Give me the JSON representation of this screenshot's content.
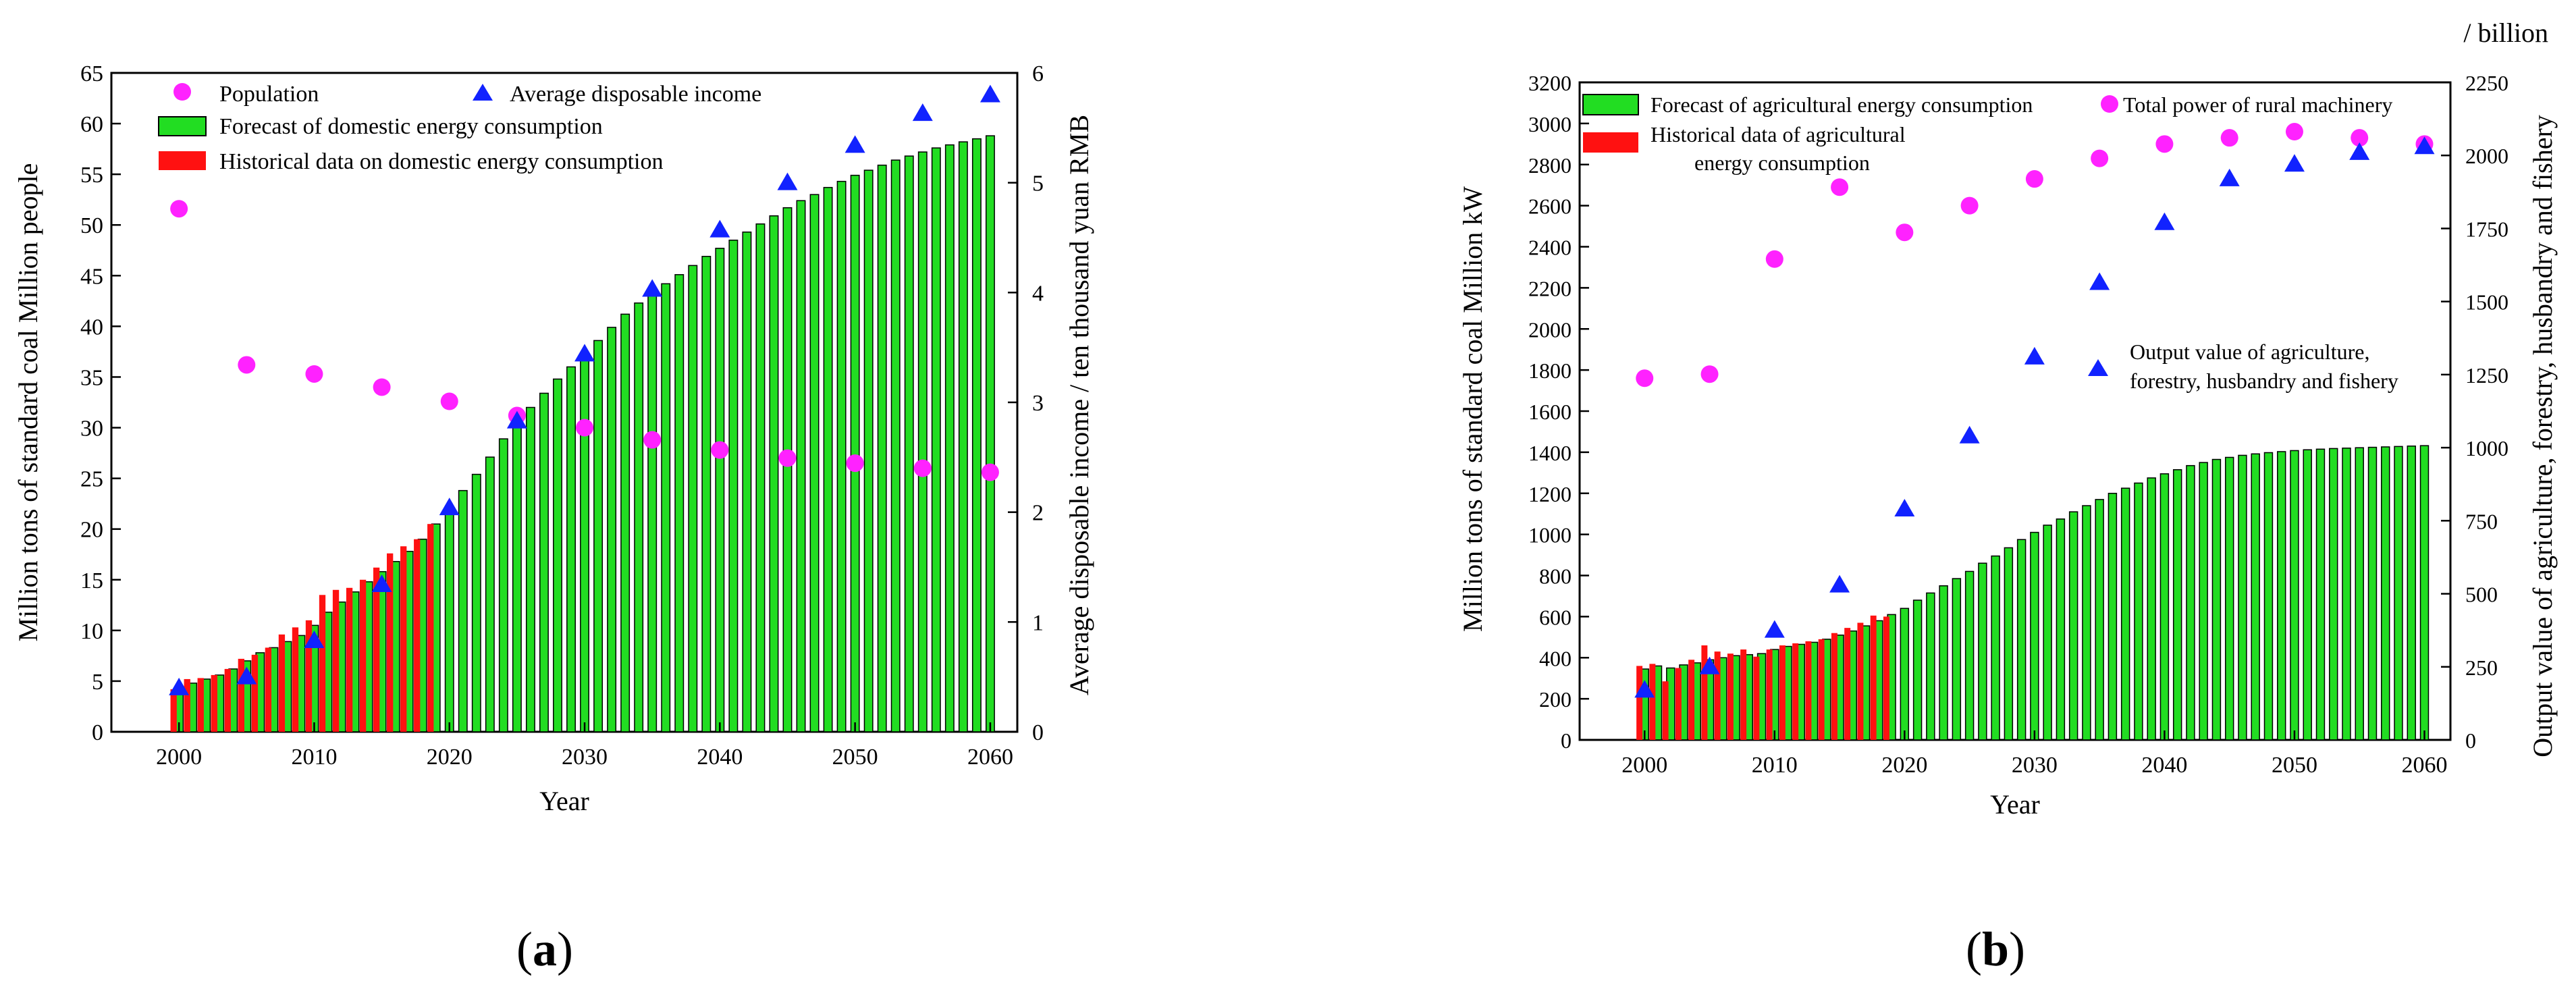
{
  "panel_labels": {
    "a": {
      "open": "(",
      "letter": "a",
      "close": ")"
    },
    "b": {
      "open": "(",
      "letter": "b",
      "close": ")"
    }
  },
  "colors": {
    "bar_green": "#22dd22",
    "bar_red": "#ff1111",
    "population_marker": "#ff22ff",
    "income_marker": "#1122ff"
  },
  "chart_data": [
    {
      "id": "a",
      "type": "bar",
      "xlabel": "Year",
      "ylabel": "Million tons of standard coal  Million people",
      "y2label": "Average disposable income / ten thousand yuan RMB",
      "xlim": [
        1995,
        2062
      ],
      "ylim": [
        0,
        65
      ],
      "y2lim": [
        0,
        6
      ],
      "xticks": [
        2000,
        2010,
        2020,
        2030,
        2040,
        2050,
        2060
      ],
      "yticks": [
        0,
        5,
        10,
        15,
        20,
        25,
        30,
        35,
        40,
        45,
        50,
        55,
        60,
        65
      ],
      "y2ticks": [
        0,
        1,
        2,
        3,
        4,
        5,
        6
      ],
      "legend": {
        "population": "Population",
        "income": "Average disposable income",
        "forecast": "Forecast of domestic energy consumption",
        "historical": "Historical data on domestic energy consumption"
      },
      "forecast": {
        "name": "Forecast of domestic energy consumption",
        "x": [
          2000,
          2001,
          2002,
          2003,
          2004,
          2005,
          2006,
          2007,
          2008,
          2009,
          2010,
          2011,
          2012,
          2013,
          2014,
          2015,
          2016,
          2017,
          2018,
          2019,
          2020,
          2021,
          2022,
          2023,
          2024,
          2025,
          2026,
          2027,
          2028,
          2029,
          2030,
          2031,
          2032,
          2033,
          2034,
          2035,
          2036,
          2037,
          2038,
          2039,
          2040,
          2041,
          2042,
          2043,
          2044,
          2045,
          2046,
          2047,
          2048,
          2049,
          2050,
          2051,
          2052,
          2053,
          2054,
          2055,
          2056,
          2057,
          2058,
          2059,
          2060
        ],
        "values": [
          4.0,
          4.8,
          5.2,
          5.6,
          6.2,
          7.0,
          7.8,
          8.3,
          8.9,
          9.5,
          10.5,
          11.8,
          12.8,
          13.8,
          14.8,
          15.8,
          16.8,
          17.8,
          19.0,
          20.5,
          21.9,
          23.8,
          25.4,
          27.1,
          28.9,
          30.5,
          32.0,
          33.4,
          34.8,
          36.0,
          37.3,
          38.6,
          39.9,
          41.2,
          42.3,
          43.3,
          44.2,
          45.1,
          46.0,
          46.9,
          47.7,
          48.5,
          49.3,
          50.1,
          50.9,
          51.7,
          52.4,
          53.0,
          53.7,
          54.3,
          54.9,
          55.4,
          55.9,
          56.4,
          56.8,
          57.2,
          57.6,
          57.9,
          58.2,
          58.5,
          58.8
        ]
      },
      "historical": {
        "name": "Historical data on domestic energy consumption",
        "x": [
          2000,
          2001,
          2002,
          2003,
          2004,
          2005,
          2006,
          2007,
          2008,
          2009,
          2010,
          2011,
          2012,
          2013,
          2014,
          2015,
          2016,
          2017,
          2018,
          2019
        ],
        "values": [
          4.2,
          5.2,
          5.3,
          5.6,
          6.2,
          7.2,
          7.6,
          8.3,
          9.6,
          10.3,
          11.0,
          13.5,
          14.0,
          14.2,
          15.0,
          16.2,
          17.6,
          18.3,
          19.0,
          20.5
        ]
      },
      "population": {
        "name": "Population",
        "x": [
          2000,
          2005,
          2010,
          2015,
          2020,
          2025,
          2030,
          2035,
          2040,
          2045,
          2050,
          2055,
          2060
        ],
        "values": [
          51.6,
          36.2,
          35.3,
          34.0,
          32.6,
          31.2,
          30.0,
          28.8,
          27.8,
          27.0,
          26.5,
          26.0,
          25.6
        ]
      },
      "income": {
        "name": "Average disposable income",
        "axis": "right",
        "x": [
          2000,
          2005,
          2010,
          2015,
          2020,
          2025,
          2030,
          2035,
          2040,
          2045,
          2050,
          2055,
          2060
        ],
        "values": [
          0.4,
          0.5,
          0.83,
          1.34,
          2.04,
          2.83,
          3.44,
          4.03,
          4.57,
          5.0,
          5.34,
          5.63,
          5.8
        ]
      }
    },
    {
      "id": "b",
      "type": "bar",
      "xlabel": "Year",
      "ylabel": "Million tons of standard coal  Million kW",
      "y2label": "Output value of agriculture, forestry, husbandry and fishery",
      "y2unit": "/ billion",
      "xlim": [
        1995,
        2062
      ],
      "ylim": [
        0,
        3200
      ],
      "y2lim": [
        0,
        2250
      ],
      "xticks": [
        2000,
        2010,
        2020,
        2030,
        2040,
        2050,
        2060
      ],
      "yticks": [
        0,
        200,
        400,
        600,
        800,
        1000,
        1200,
        1400,
        1600,
        1800,
        2000,
        2200,
        2400,
        2600,
        2800,
        3000,
        3200
      ],
      "y2ticks": [
        0,
        250,
        500,
        750,
        1000,
        1250,
        1500,
        1750,
        2000,
        2250
      ],
      "legend": {
        "forecast": "Forecast of agricultural energy consumption",
        "historical_line1": "Historical data of agricultural",
        "historical_line2": "energy consumption",
        "machinery": "Total power of rural machinery",
        "output_line1": "Output value of agriculture,",
        "output_line2": "forestry, husbandry and fishery"
      },
      "forecast": {
        "name": "Forecast of agricultural energy consumption",
        "x": [
          2000,
          2001,
          2002,
          2003,
          2004,
          2005,
          2006,
          2007,
          2008,
          2009,
          2010,
          2011,
          2012,
          2013,
          2014,
          2015,
          2016,
          2017,
          2018,
          2019,
          2020,
          2021,
          2022,
          2023,
          2024,
          2025,
          2026,
          2027,
          2028,
          2029,
          2030,
          2031,
          2032,
          2033,
          2034,
          2035,
          2036,
          2037,
          2038,
          2039,
          2040,
          2041,
          2042,
          2043,
          2044,
          2045,
          2046,
          2047,
          2048,
          2049,
          2050,
          2051,
          2052,
          2053,
          2054,
          2055,
          2056,
          2057,
          2058,
          2059,
          2060
        ],
        "values": [
          345,
          360,
          350,
          365,
          375,
          390,
          400,
          410,
          415,
          420,
          440,
          455,
          465,
          475,
          490,
          510,
          530,
          555,
          580,
          610,
          640,
          680,
          715,
          750,
          785,
          820,
          860,
          895,
          935,
          975,
          1010,
          1045,
          1075,
          1110,
          1140,
          1170,
          1200,
          1225,
          1250,
          1275,
          1295,
          1315,
          1335,
          1350,
          1365,
          1375,
          1385,
          1392,
          1398,
          1403,
          1408,
          1412,
          1415,
          1418,
          1420,
          1422,
          1424,
          1426,
          1428,
          1430,
          1432
        ]
      },
      "historical": {
        "name": "Historical data of agricultural energy consumption",
        "x": [
          2000,
          2001,
          2002,
          2003,
          2004,
          2005,
          2006,
          2007,
          2008,
          2009,
          2010,
          2011,
          2012,
          2013,
          2014,
          2015,
          2016,
          2017,
          2018,
          2019
        ],
        "values": [
          360,
          370,
          285,
          350,
          390,
          460,
          430,
          420,
          440,
          405,
          440,
          460,
          470,
          480,
          490,
          520,
          545,
          570,
          605,
          600
        ]
      },
      "machinery": {
        "name": "Total power of rural machinery",
        "x": [
          2000,
          2005,
          2010,
          2015,
          2020,
          2025,
          2030,
          2035,
          2040,
          2045,
          2050,
          2055,
          2060
        ],
        "values": [
          1760,
          1780,
          2340,
          2690,
          2470,
          2600,
          2730,
          2830,
          2900,
          2930,
          2960,
          2930,
          2900
        ]
      },
      "output": {
        "name": "Output value of agriculture, forestry, husbandry and fishery",
        "axis": "right",
        "x": [
          2000,
          2005,
          2010,
          2015,
          2020,
          2025,
          2030,
          2035,
          2040,
          2045,
          2050,
          2055,
          2060
        ],
        "values": [
          170,
          250,
          375,
          530,
          790,
          1040,
          1310,
          1565,
          1770,
          1920,
          1970,
          2010,
          2030
        ]
      }
    }
  ]
}
